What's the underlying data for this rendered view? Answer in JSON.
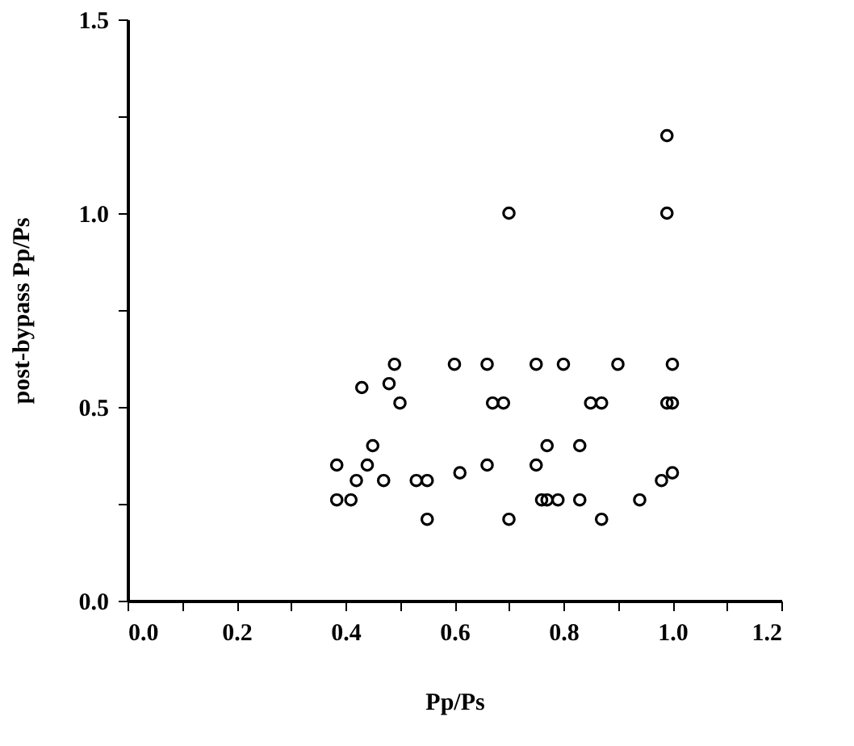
{
  "chart_data": {
    "type": "scatter",
    "xlabel": "Pp/Ps",
    "ylabel": "post-bypass Pp/Ps",
    "series": [
      {
        "color": "#000000",
        "x": [
          0.384,
          0.384,
          0.41,
          0.42,
          0.44,
          0.45,
          0.47,
          0.53,
          0.55,
          0.55,
          0.61,
          0.66,
          0.7,
          0.75,
          0.77,
          0.76,
          0.77,
          0.79,
          0.83,
          0.83,
          0.87,
          0.94,
          0.98,
          1.0,
          0.43,
          0.48,
          0.49,
          0.5,
          0.6,
          0.66,
          0.67,
          0.69,
          0.75,
          0.8,
          0.85,
          0.87,
          0.9,
          1.0,
          0.99,
          1.0,
          0.99,
          0.99,
          0.7
        ],
        "values": [
          0.35,
          0.26,
          0.26,
          0.31,
          0.35,
          0.4,
          0.31,
          0.31,
          0.31,
          0.21,
          0.33,
          0.35,
          0.21,
          0.35,
          0.4,
          0.26,
          0.26,
          0.26,
          0.4,
          0.26,
          0.21,
          0.26,
          0.31,
          0.33,
          0.55,
          0.56,
          0.61,
          0.51,
          0.61,
          0.61,
          0.51,
          0.51,
          0.61,
          0.61,
          0.51,
          0.51,
          0.61,
          0.61,
          0.51,
          0.51,
          1.2,
          1.0,
          1.0
        ]
      }
    ],
    "xlim": [
      0,
      1.2
    ],
    "ylim": [
      0,
      1.5
    ],
    "xticks": [
      {
        "value": 0,
        "label": "0.0"
      },
      {
        "value": 0.1,
        "label": null
      },
      0.2,
      {
        "value": 0.3,
        "label": null
      },
      0.4,
      {
        "value": 0.5,
        "label": null
      },
      0.6,
      {
        "value": 0.7,
        "label": null
      },
      0.8,
      {
        "value": 0.9,
        "label": null
      },
      {
        "value": 1.0,
        "label": "1.0"
      },
      {
        "value": 1.1,
        "label": null
      },
      1.2
    ],
    "yticks": [
      {
        "value": 0,
        "label": "0.0"
      },
      {
        "value": 0.25,
        "label": null
      },
      0.5,
      {
        "value": 0.75,
        "label": null
      },
      {
        "value": 1.0,
        "label": "1.0"
      },
      {
        "value": 1.25,
        "label": null
      },
      1.5
    ],
    "grid": false,
    "marker": "circle",
    "legend": false
  }
}
